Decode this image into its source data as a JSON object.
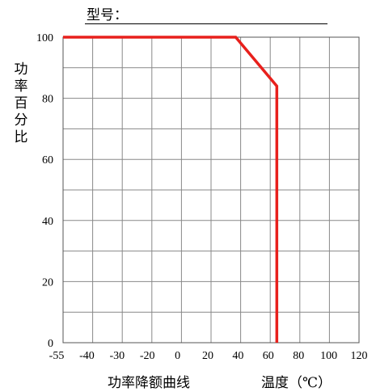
{
  "model_label": "型号：",
  "chart_data": {
    "type": "line",
    "title": "",
    "xlabel": "温度（℃）",
    "ylabel": "功率百分比%",
    "footer_caption": "功率降额曲线",
    "xlim": [
      -55,
      125
    ],
    "ylim": [
      0,
      100
    ],
    "x_ticks": [
      "-55",
      "-40",
      "-30",
      "-20",
      "0",
      "20",
      "40",
      "60",
      "80",
      "100",
      "120"
    ],
    "x_tick_positions": [
      -55,
      -40,
      -30,
      -20,
      0,
      20,
      40,
      60,
      80,
      100,
      120
    ],
    "y_ticks": [
      "0",
      "20",
      "40",
      "60",
      "80",
      "100"
    ],
    "y_tick_values": [
      0,
      20,
      40,
      60,
      80,
      100
    ],
    "grid": true,
    "series": [
      {
        "color": "#e8201c",
        "x": [
          -55,
          50,
          75,
          75
        ],
        "y": [
          100,
          100,
          84,
          0
        ]
      }
    ]
  }
}
